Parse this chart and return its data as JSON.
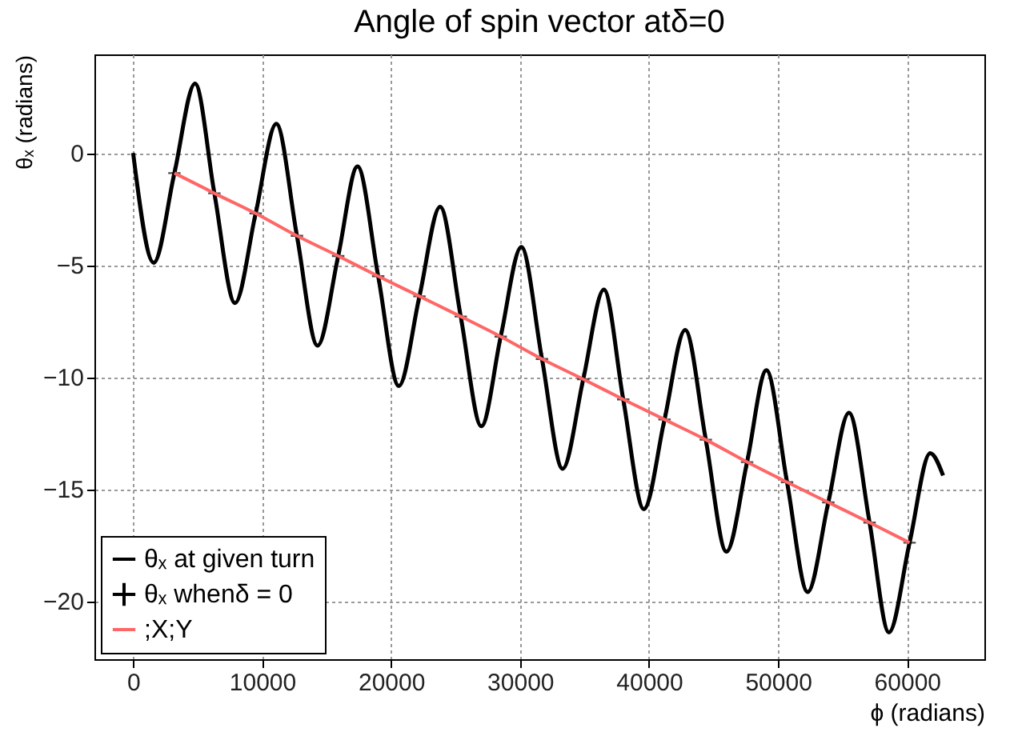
{
  "chart_data": {
    "type": "line",
    "title": "Angle of spin vector atδ=0",
    "xlabel": "ϕ (radians)",
    "ylabel": "θₓ (radians)",
    "xlim": [
      -3000,
      66000
    ],
    "ylim": [
      -22.6,
      4.4
    ],
    "xticks": [
      0,
      10000,
      20000,
      30000,
      40000,
      50000,
      60000
    ],
    "yticks": [
      -20,
      -15,
      -10,
      -5,
      0
    ],
    "grid": true,
    "legend": "bottom left",
    "series": [
      {
        "name": "θₓ at given turn",
        "color": "#000000",
        "x": [
          0,
          1600,
          3200,
          4800,
          6300,
          7900,
          9500,
          11100,
          12700,
          14300,
          15900,
          17400,
          19000,
          20600,
          22200,
          23800,
          25400,
          27000,
          28500,
          30100,
          31700,
          33300,
          34900,
          36500,
          38000,
          39600,
          41200,
          42800,
          44400,
          46000,
          47600,
          49100,
          50700,
          52300,
          53900,
          55500,
          57100,
          58600,
          60200,
          61800,
          62800
        ],
        "values": [
          0,
          -4.9,
          -0.9,
          3.1,
          -1.8,
          -6.7,
          -2.7,
          1.3,
          -3.7,
          -8.6,
          -4.6,
          -0.6,
          -5.5,
          -10.4,
          -6.4,
          -2.4,
          -7.3,
          -12.2,
          -8.2,
          -4.2,
          -9.2,
          -14.1,
          -10.1,
          -6.1,
          -11.0,
          -15.9,
          -11.9,
          -7.9,
          -12.8,
          -17.8,
          -13.8,
          -9.7,
          -14.7,
          -19.6,
          -15.6,
          -11.6,
          -16.5,
          -21.4,
          -17.4,
          -13.4,
          -14.4
        ]
      },
      {
        "name": "θₓ whenδ = 0",
        "color": "#000000",
        "type": "scatter",
        "marker": "cross",
        "x": [
          3200,
          6300,
          9500,
          12700,
          15900,
          19000,
          22200,
          25400,
          28500,
          31700,
          34900,
          38000,
          41200,
          44400,
          47600,
          50700,
          53900,
          57100,
          60200
        ],
        "values": [
          -0.9,
          -1.8,
          -2.7,
          -3.7,
          -4.6,
          -5.5,
          -6.4,
          -7.3,
          -8.2,
          -9.2,
          -10.1,
          -11.0,
          -11.9,
          -12.8,
          -13.8,
          -14.7,
          -15.6,
          -16.5,
          -17.4
        ]
      },
      {
        "name": ";X;Y",
        "color": "#ff6666",
        "x": [
          3200,
          6300,
          9500,
          12700,
          15900,
          19000,
          22200,
          25400,
          28500,
          31700,
          34900,
          38000,
          41200,
          44400,
          47600,
          50700,
          53900,
          57100,
          60200
        ],
        "values": [
          -0.9,
          -1.8,
          -2.7,
          -3.7,
          -4.6,
          -5.5,
          -6.4,
          -7.3,
          -8.2,
          -9.2,
          -10.1,
          -11.0,
          -11.9,
          -12.8,
          -13.8,
          -14.7,
          -15.6,
          -16.5,
          -17.4
        ]
      }
    ]
  }
}
